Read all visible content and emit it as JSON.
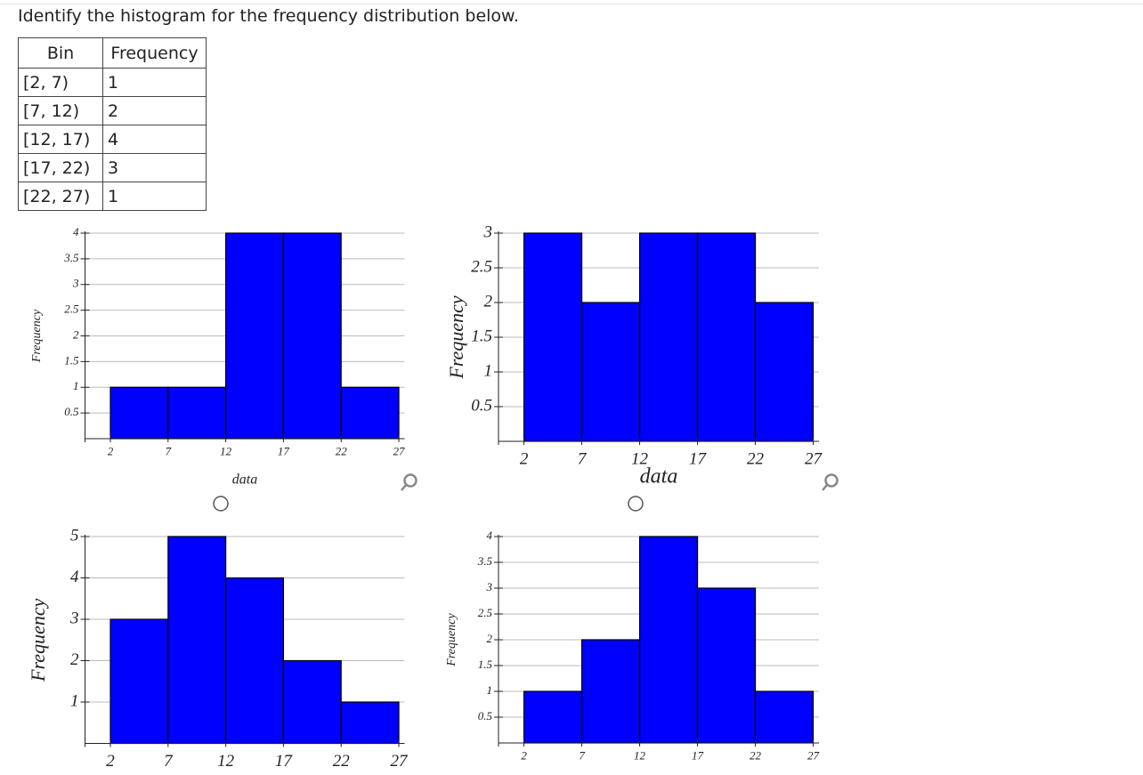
{
  "question": "Identify the histogram for the frequency distribution below.",
  "table": {
    "header": [
      "Bin",
      "Frequency"
    ],
    "rows": [
      [
        "[2, 7)",
        1
      ],
      [
        "[7, 12)",
        2
      ],
      [
        "[12, 17)",
        4
      ],
      [
        "[17, 22)",
        3
      ],
      [
        "[22, 27)",
        1
      ]
    ]
  },
  "chart_data": [
    {
      "type": "histogram",
      "bins": [
        2,
        7,
        12,
        17,
        22,
        27
      ],
      "values": [
        1,
        1,
        4,
        4,
        1
      ],
      "color": "#0000ff",
      "xlabel": "data",
      "ylabel": "Frequency",
      "xlim": [
        -0.2,
        27.5
      ],
      "ylim": [
        0,
        4
      ],
      "xticks": [
        2,
        7,
        12,
        17,
        22,
        27
      ],
      "yticks": [
        0.5,
        1,
        1.5,
        2,
        2.5,
        3,
        3.5,
        4
      ],
      "grid": true
    },
    {
      "type": "histogram",
      "bins": [
        2,
        7,
        12,
        17,
        22,
        27
      ],
      "values": [
        3,
        2,
        3,
        3,
        2
      ],
      "color": "#0000ff",
      "xlabel": "data",
      "ylabel": "Frequency",
      "xlim": [
        -0.2,
        27.5
      ],
      "ylim": [
        0,
        3
      ],
      "xticks": [
        2,
        7,
        12,
        17,
        22,
        27
      ],
      "yticks": [
        0.5,
        1,
        1.5,
        2,
        2.5,
        3
      ],
      "grid": true
    },
    {
      "type": "histogram",
      "bins": [
        2,
        7,
        12,
        17,
        22,
        27
      ],
      "values": [
        3,
        5,
        4,
        2,
        1
      ],
      "color": "#0000ff",
      "ylabel": "Frequency",
      "xlim": [
        -0.2,
        27.5
      ],
      "ylim": [
        0,
        5
      ],
      "xticks": [
        2,
        7,
        12,
        17,
        22,
        27
      ],
      "yticks": [
        1,
        2,
        3,
        4,
        5
      ],
      "grid": true
    },
    {
      "type": "histogram",
      "bins": [
        2,
        7,
        12,
        17,
        22,
        27
      ],
      "values": [
        1,
        2,
        4,
        3,
        1
      ],
      "color": "#0000ff",
      "ylabel": "Frequency",
      "xlim": [
        -0.2,
        27.5
      ],
      "ylim": [
        0,
        4
      ],
      "xticks": [
        2,
        7,
        12,
        17,
        22,
        27
      ],
      "yticks": [
        0.5,
        1,
        1.5,
        2,
        2.5,
        3,
        3.5,
        4
      ],
      "grid": true
    }
  ]
}
